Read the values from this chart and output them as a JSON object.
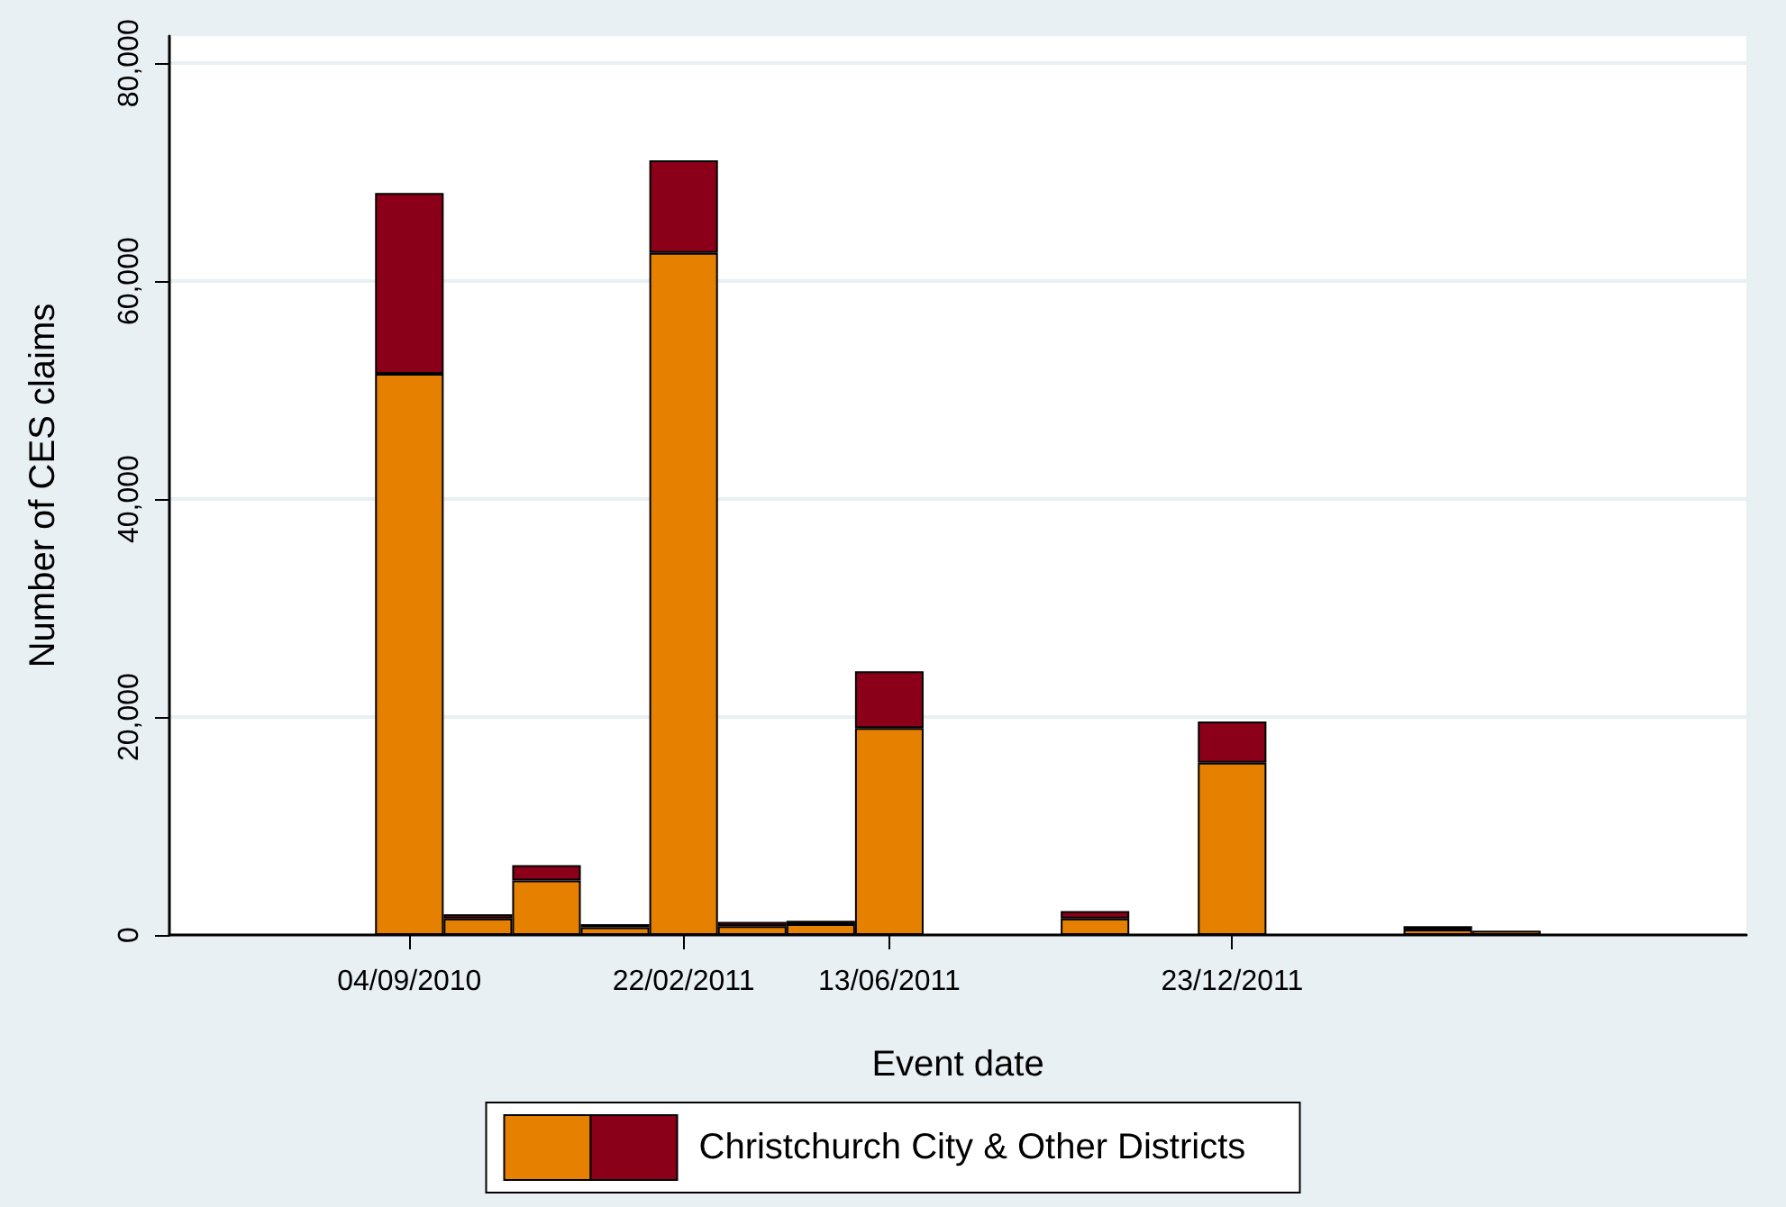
{
  "chart_data": {
    "type": "bar",
    "stacked": true,
    "xlabel": "Event date",
    "ylabel": "Number of CES claims",
    "categories": [
      null,
      null,
      null,
      "04/09/2010",
      null,
      null,
      null,
      "22/02/2011",
      null,
      null,
      "13/06/2011",
      null,
      null,
      null,
      null,
      "23/12/2011",
      null,
      null,
      null,
      null,
      null,
      null,
      null
    ],
    "series": [
      {
        "color": "#e68000",
        "values": [
          null,
          null,
          null,
          51500,
          1500,
          5000,
          700,
          62600,
          800,
          1000,
          19000,
          null,
          null,
          1500,
          null,
          15800,
          null,
          null,
          500,
          400,
          null,
          null,
          null
        ]
      },
      {
        "name": "Christchurch City & Other Districts",
        "color": "#8b0018",
        "values": [
          null,
          null,
          null,
          16600,
          400,
          1400,
          300,
          8500,
          400,
          300,
          5200,
          null,
          null,
          700,
          null,
          3800,
          null,
          null,
          300,
          null,
          null,
          null,
          null
        ]
      }
    ],
    "ylim": [
      0,
      82500
    ],
    "yticks": [
      {
        "value": 0,
        "label": "0"
      },
      {
        "value": 20000,
        "label": "20,000"
      },
      {
        "value": 40000,
        "label": "40,000"
      },
      {
        "value": 60000,
        "label": "60,000"
      },
      {
        "value": 80000,
        "label": "80,000"
      }
    ],
    "grid": "y",
    "legend": "bottom"
  }
}
